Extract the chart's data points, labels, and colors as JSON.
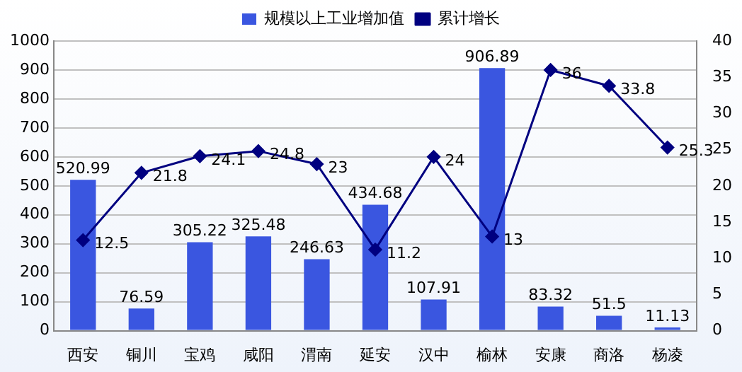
{
  "chart_data": {
    "type": "bar",
    "categories": [
      "西安",
      "铜川",
      "宝鸡",
      "咸阳",
      "渭南",
      "延安",
      "汉中",
      "榆林",
      "安康",
      "商洛",
      "杨凌"
    ],
    "series": [
      {
        "name": "规模以上工业增加值",
        "color": "#3a56e0",
        "values": [
          520.99,
          76.59,
          305.22,
          325.48,
          246.63,
          434.68,
          107.91,
          906.89,
          83.32,
          51.5,
          11.13
        ]
      },
      {
        "name": "累计增长",
        "type": "line",
        "axis": "y2",
        "color": "#000080",
        "marker": "diamond",
        "values": [
          12.5,
          21.8,
          24.1,
          24.8,
          23,
          11.2,
          24,
          13,
          36,
          33.8,
          25.3
        ]
      }
    ],
    "ylim": [
      0,
      1000
    ],
    "yticks": [
      0,
      100,
      200,
      300,
      400,
      500,
      600,
      700,
      800,
      900,
      1000
    ],
    "y2lim": [
      0,
      40
    ],
    "y2ticks": [
      0,
      5,
      10,
      15,
      20,
      25,
      30,
      35,
      40
    ],
    "grid": "y",
    "legend": "top",
    "data_labels": true
  }
}
